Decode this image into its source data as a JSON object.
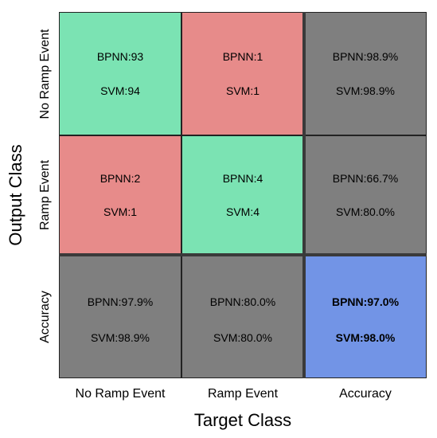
{
  "chart_data": {
    "type": "table",
    "title": "",
    "xlabel": "Target Class",
    "ylabel": "Output Class",
    "columns": [
      "No Ramp Event",
      "Ramp Event",
      "Accuracy"
    ],
    "rows": [
      "No Ramp Event",
      "Ramp Event",
      "Accuracy"
    ],
    "cells": [
      [
        {
          "color": "#7be3b3",
          "bold": false,
          "lines": [
            "BPNN:93",
            "SVM:94"
          ]
        },
        {
          "color": "#e78b8a",
          "bold": false,
          "lines": [
            "BPNN:1",
            "SVM:1"
          ]
        },
        {
          "color": "#7f7f7f",
          "bold": false,
          "lines": [
            "BPNN:98.9%",
            "SVM:98.9%"
          ]
        }
      ],
      [
        {
          "color": "#e78b8a",
          "bold": false,
          "lines": [
            "BPNN:2",
            "SVM:1"
          ]
        },
        {
          "color": "#7be3b3",
          "bold": false,
          "lines": [
            "BPNN:4",
            "SVM:4"
          ]
        },
        {
          "color": "#7f7f7f",
          "bold": false,
          "lines": [
            "BPNN:66.7%",
            "SVM:80.0%"
          ]
        }
      ],
      [
        {
          "color": "#7f7f7f",
          "bold": false,
          "lines": [
            "BPNN:97.9%",
            "SVM:98.9%"
          ]
        },
        {
          "color": "#7f7f7f",
          "bold": false,
          "lines": [
            "BPNN:80.0%",
            "SVM:80.0%"
          ]
        },
        {
          "color": "#7294e6",
          "bold": true,
          "lines": [
            "BPNN:97.0%",
            "SVM:98.0%"
          ]
        }
      ]
    ]
  }
}
